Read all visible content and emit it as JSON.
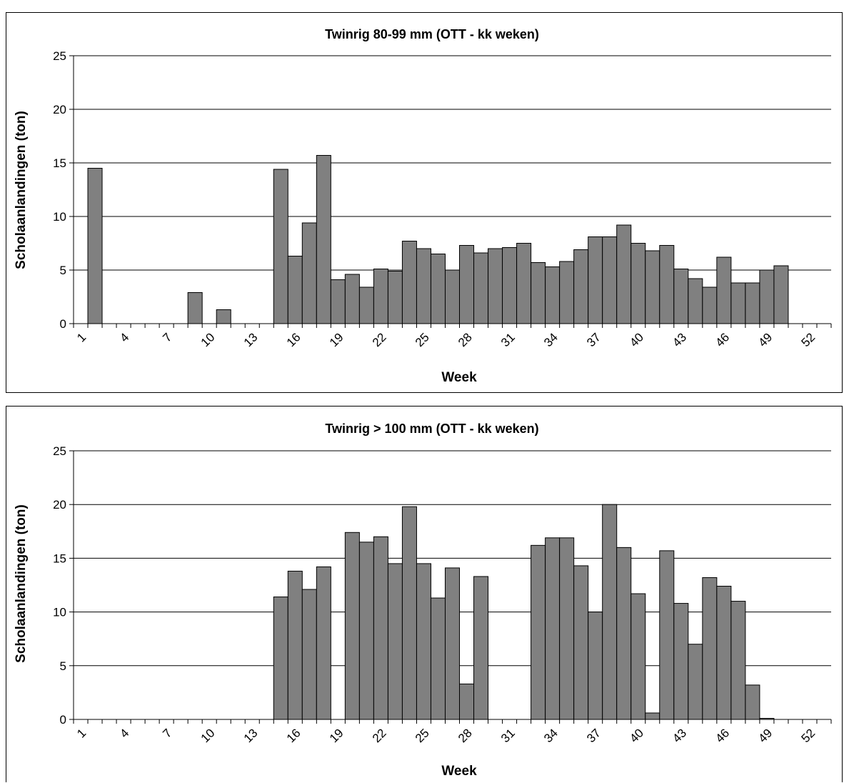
{
  "colors": {
    "bar_fill": "#808080",
    "bar_stroke": "#000000",
    "gridline": "#000000",
    "background": "#ffffff"
  },
  "chart_data": [
    {
      "type": "bar",
      "title": "Twinrig 80-99 mm (OTT - kk weken)",
      "xlabel": "Week",
      "ylabel": "Scholaanlandingen (ton)",
      "ylim": [
        0,
        25
      ],
      "yticks": [
        0,
        5,
        10,
        15,
        20,
        25
      ],
      "xtick_labels": [
        "1",
        "4",
        "7",
        "10",
        "13",
        "16",
        "19",
        "22",
        "25",
        "28",
        "31",
        "34",
        "37",
        "40",
        "43",
        "46",
        "49",
        "52"
      ],
      "grid": true,
      "categories": [
        1,
        2,
        3,
        4,
        5,
        6,
        7,
        8,
        9,
        10,
        11,
        12,
        13,
        14,
        15,
        16,
        17,
        18,
        19,
        20,
        21,
        22,
        23,
        24,
        25,
        26,
        27,
        28,
        29,
        30,
        31,
        32,
        33,
        34,
        35,
        36,
        37,
        38,
        39,
        40,
        41,
        42,
        43,
        44,
        45,
        46,
        47,
        48,
        49,
        50,
        51,
        52,
        53
      ],
      "values": [
        0,
        14.5,
        0,
        0,
        0,
        0,
        0,
        0,
        2.9,
        0,
        1.3,
        0,
        0,
        0,
        14.4,
        6.3,
        9.4,
        15.7,
        4.1,
        4.6,
        3.4,
        5.1,
        4.9,
        7.7,
        7.0,
        6.5,
        5.0,
        7.3,
        6.6,
        7.0,
        7.1,
        7.5,
        5.7,
        5.3,
        5.8,
        6.9,
        8.1,
        8.1,
        9.2,
        7.5,
        6.8,
        7.3,
        5.1,
        4.2,
        3.4,
        6.2,
        3.8,
        3.8,
        5.0,
        5.4,
        0,
        0,
        0
      ]
    },
    {
      "type": "bar",
      "title": "Twinrig > 100 mm (OTT - kk weken)",
      "xlabel": "Week",
      "ylabel": "Scholaanlandingen (ton)",
      "ylim": [
        0,
        25
      ],
      "yticks": [
        0,
        5,
        10,
        15,
        20,
        25
      ],
      "xtick_labels": [
        "1",
        "4",
        "7",
        "10",
        "13",
        "16",
        "19",
        "22",
        "25",
        "28",
        "31",
        "34",
        "37",
        "40",
        "43",
        "46",
        "49",
        "52"
      ],
      "grid": true,
      "categories": [
        1,
        2,
        3,
        4,
        5,
        6,
        7,
        8,
        9,
        10,
        11,
        12,
        13,
        14,
        15,
        16,
        17,
        18,
        19,
        20,
        21,
        22,
        23,
        24,
        25,
        26,
        27,
        28,
        29,
        30,
        31,
        32,
        33,
        34,
        35,
        36,
        37,
        38,
        39,
        40,
        41,
        42,
        43,
        44,
        45,
        46,
        47,
        48,
        49,
        50,
        51,
        52,
        53
      ],
      "values": [
        0,
        0,
        0,
        0,
        0,
        0,
        0,
        0,
        0,
        0,
        0,
        0,
        0,
        0,
        11.4,
        13.8,
        12.1,
        14.2,
        0,
        17.4,
        16.5,
        17.0,
        14.5,
        19.8,
        14.5,
        11.3,
        14.1,
        3.3,
        13.3,
        0,
        0,
        0,
        16.2,
        16.9,
        16.9,
        14.3,
        10.0,
        20.0,
        16.0,
        11.7,
        0.6,
        15.7,
        10.8,
        7.0,
        13.2,
        12.4,
        11.0,
        3.2,
        0.1,
        0,
        0,
        0,
        0
      ]
    }
  ]
}
